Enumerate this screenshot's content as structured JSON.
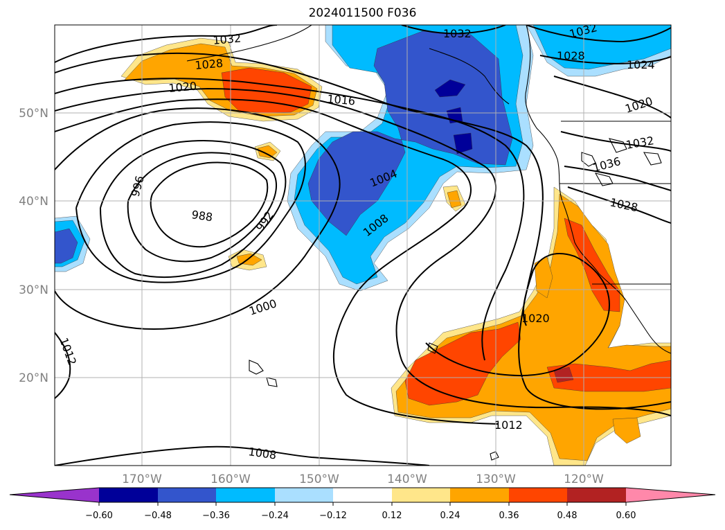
{
  "title": "2024011500 F036",
  "colors": {
    "neg_060_plus": "#9933cc",
    "neg_048_060": "#000099",
    "neg_036_048": "#3355cc",
    "neg_024_036": "#00bbff",
    "neg_012_024": "#aadfff",
    "neutral": "#ffffff",
    "pos_012_024": "#ffe68a",
    "pos_024_036": "#ffa500",
    "pos_036_048": "#ff4500",
    "pos_048_060": "#b22222",
    "pos_060_plus": "#ff88aa",
    "contour": "#000000",
    "grid": "#b0b0b0"
  },
  "lat_labels": [
    "50°N",
    "40°N",
    "30°N",
    "20°N"
  ],
  "lon_labels": [
    "170°W",
    "160°W",
    "150°W",
    "140°W",
    "130°W",
    "120°W"
  ],
  "colorbar_ticks": [
    "−0.60",
    "−0.48",
    "−0.36",
    "−0.24",
    "−0.12",
    "0.12",
    "0.24",
    "0.36",
    "0.48",
    "0.60"
  ],
  "contour_labels": [
    "1032",
    "1028",
    "1020",
    "1016",
    "996",
    "988",
    "992",
    "1004",
    "1008",
    "1000",
    "1012",
    "1020",
    "1012",
    "1008",
    "1032",
    "1028",
    "1024",
    "1020",
    "1032",
    "1036",
    "1028",
    "1032"
  ]
}
